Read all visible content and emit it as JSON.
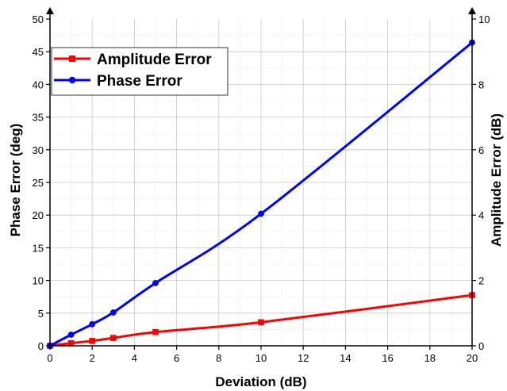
{
  "chart_data": {
    "type": "line",
    "xlabel": "Deviation (dB)",
    "ylabel_left": "Phase Error (deg)",
    "ylabel_right": "Amplitude Error (dB)",
    "xlim": [
      0,
      20
    ],
    "ylim_left": [
      0,
      50
    ],
    "ylim_right": [
      0,
      10
    ],
    "x_ticks": [
      0,
      2,
      4,
      6,
      8,
      10,
      12,
      14,
      16,
      18,
      20
    ],
    "y_left_ticks": [
      0,
      5,
      10,
      15,
      20,
      25,
      30,
      35,
      40,
      45,
      50
    ],
    "y_right_ticks": [
      0,
      2,
      4,
      6,
      8,
      10
    ],
    "grid": true,
    "legend_position": "top-left",
    "series": [
      {
        "name": "Amplitude Error",
        "axis": "right",
        "color": "#ff0000",
        "marker": "square",
        "x": [
          0,
          1,
          2,
          3,
          5,
          10,
          20
        ],
        "y": [
          0,
          0.08,
          0.15,
          0.24,
          0.42,
          0.72,
          1.55
        ]
      },
      {
        "name": "Phase Error",
        "axis": "left",
        "color": "#0000ff",
        "marker": "circle",
        "x": [
          0,
          1,
          2,
          3,
          5,
          10,
          20
        ],
        "y": [
          0,
          1.7,
          3.3,
          5.1,
          9.6,
          20.2,
          46.4
        ]
      }
    ]
  }
}
